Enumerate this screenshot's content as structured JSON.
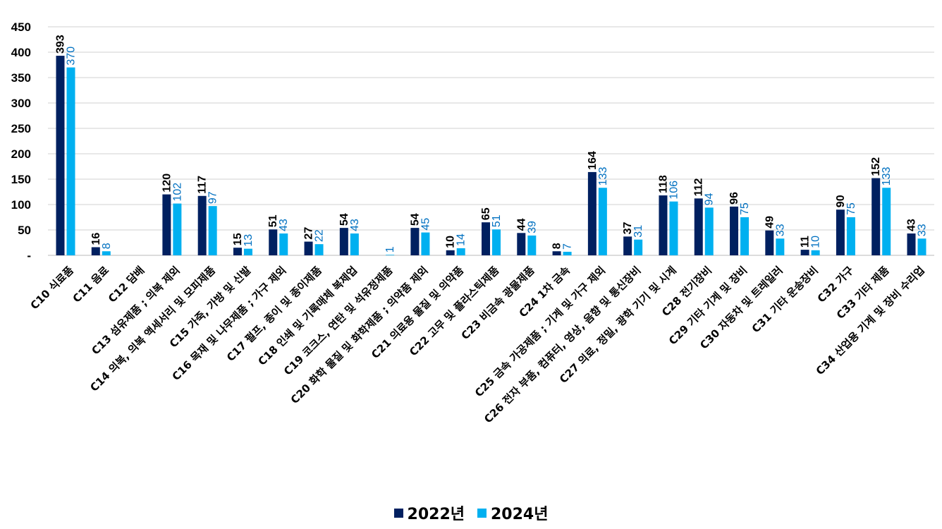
{
  "chart_data": {
    "type": "bar",
    "title": "",
    "xlabel": "",
    "ylabel": "",
    "ylim": [
      0,
      450
    ],
    "yticks": [
      0,
      50,
      100,
      150,
      200,
      250,
      300,
      350,
      400,
      450
    ],
    "ytick_labels": [
      "-",
      "50",
      "100",
      "150",
      "200",
      "250",
      "300",
      "350",
      "400",
      "450"
    ],
    "grid": true,
    "legend_position": "bottom",
    "categories": [
      "C10 식료품",
      "C11 음료",
      "C12 담배",
      "C13 섬유제품 ; 의복 제외",
      "C14 의복, 의복 액세서리 및 모피제품",
      "C15 가죽, 가방 및 신발",
      "C16 목재 및 나무제품 ; 가구 제외",
      "C17 펄프, 종이 및 종이제품",
      "C18 인쇄 및 기록매체 복제업",
      "C19 코크스, 연탄 및 석유정제품",
      "C20 화학 물질 및 화학제품 ; 의약품 제외",
      "C21 의료용 물질 및 의약품",
      "C22 고무 및 플라스틱제품",
      "C23 비금속 광물제품",
      "C24 1차 금속",
      "C25 금속 가공제품 ; 기계 및 가구 제외",
      "C26 전자 부품, 컴퓨터, 영상, 음향 및 통신장비",
      "C27 의료, 정밀, 광학 기기 및 시계",
      "C28 전기장비",
      "C29 기타 기계 및 장비",
      "C30 자동차 및 트레일러",
      "C31 기타 운송장비",
      "C32 가구",
      "C33 기타 제품",
      "C34 산업용 기계 및 장비 수리업"
    ],
    "series": [
      {
        "name": "2022년",
        "color": "#002060",
        "label_color": "#000000",
        "values": [
          393,
          16,
          null,
          120,
          117,
          15,
          51,
          27,
          54,
          null,
          54,
          10,
          65,
          44,
          8,
          164,
          37,
          118,
          112,
          96,
          49,
          11,
          90,
          152,
          43
        ]
      },
      {
        "name": "2024년",
        "color": "#00B0F0",
        "label_color": "#0070C0",
        "values": [
          370,
          8,
          null,
          102,
          97,
          13,
          43,
          22,
          43,
          1,
          45,
          14,
          51,
          39,
          7,
          133,
          31,
          106,
          94,
          75,
          33,
          10,
          75,
          133,
          33
        ]
      }
    ]
  },
  "legend": {
    "items": [
      {
        "label": "2022년",
        "color": "#002060"
      },
      {
        "label": "2024년",
        "color": "#00B0F0"
      }
    ]
  }
}
